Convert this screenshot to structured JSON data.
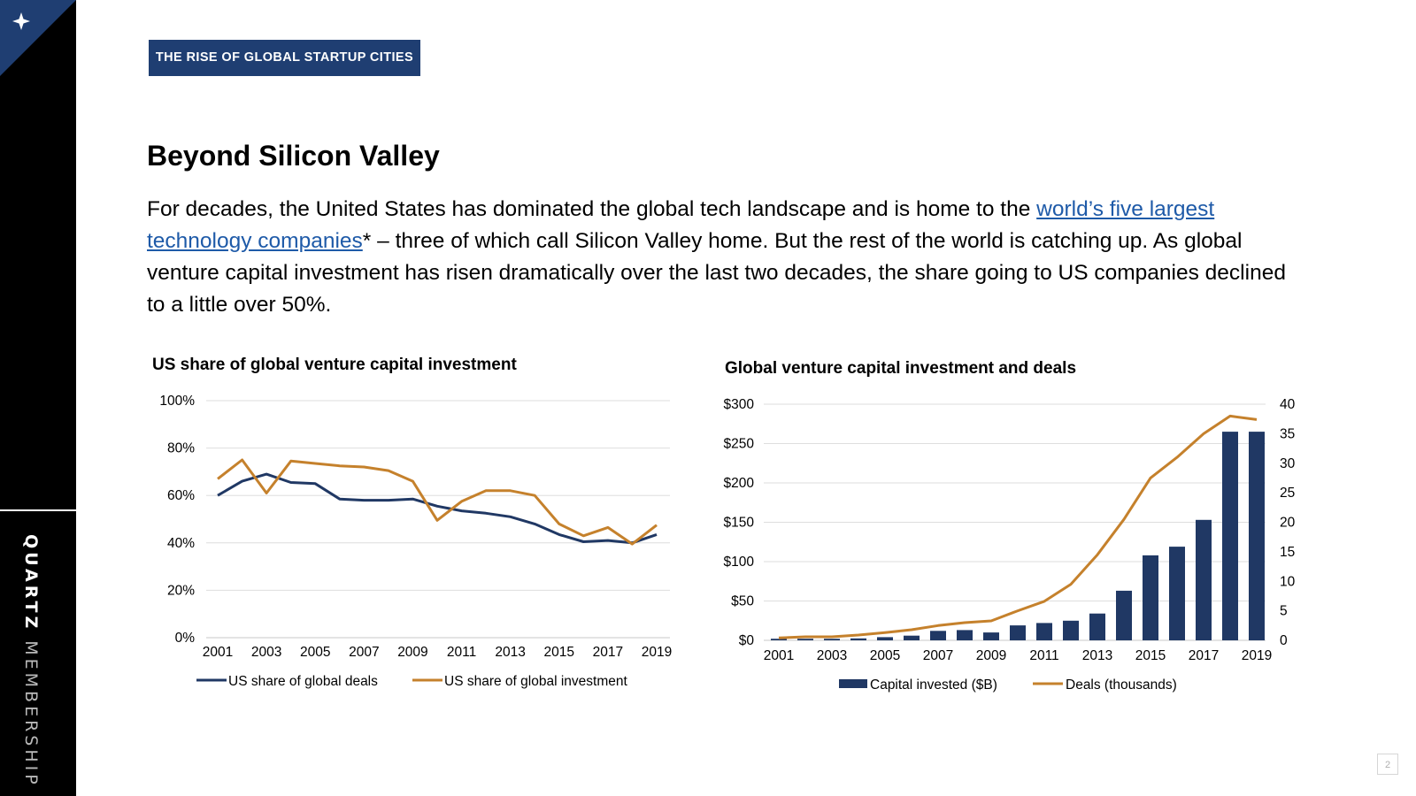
{
  "sidebar": {
    "brand_strong": "QUARTZ",
    "brand_light": "MEMBERSHIP",
    "icon": "sparkle-icon",
    "accent": "#1f3e72"
  },
  "header": {
    "tag": "THE RISE OF GLOBAL STARTUP CITIES",
    "title": "Beyond Silicon Valley"
  },
  "body": {
    "text_before": "For decades, the United States has dominated the global tech landscape and is home to the ",
    "link_text": "world’s five largest technology companies",
    "text_after": "* – three of which call Silicon Valley home. But the rest of the world is catching up. As global venture capital investment has risen dramatically over the last two decades, the share going to US companies declined to a little over 50%."
  },
  "page_number": "2",
  "chart_data": [
    {
      "type": "line",
      "title": "US share of global venture capital investment",
      "x": [
        2001,
        2002,
        2003,
        2004,
        2005,
        2006,
        2007,
        2008,
        2009,
        2010,
        2011,
        2012,
        2013,
        2014,
        2015,
        2016,
        2017,
        2018,
        2019
      ],
      "x_tick_labels": [
        "2001",
        "2003",
        "2005",
        "2007",
        "2009",
        "2011",
        "2013",
        "2015",
        "2017",
        "2019"
      ],
      "ylim": [
        0,
        100
      ],
      "y_ticks": [
        0,
        20,
        40,
        60,
        80,
        100
      ],
      "y_tick_labels": [
        "0%",
        "20%",
        "40%",
        "60%",
        "80%",
        "100%"
      ],
      "grid": true,
      "legend_position": "bottom",
      "series": [
        {
          "name": "US share of global deals",
          "color": "#203864",
          "values": [
            60,
            66,
            69,
            65.5,
            65,
            58.5,
            58,
            58,
            58.5,
            55.5,
            53.5,
            52.5,
            51,
            48,
            43.5,
            40.5,
            41,
            40,
            43.5
          ]
        },
        {
          "name": "US share of global investment",
          "color": "#c5812c",
          "values": [
            67,
            75,
            61,
            74.5,
            73.5,
            72.5,
            72,
            70.5,
            66,
            49.5,
            57.5,
            62,
            62,
            60,
            48,
            43,
            46.5,
            39.5,
            47.5
          ]
        }
      ]
    },
    {
      "type": "bar",
      "title": "Global venture capital investment and deals",
      "x": [
        2001,
        2002,
        2003,
        2004,
        2005,
        2006,
        2007,
        2008,
        2009,
        2010,
        2011,
        2012,
        2013,
        2014,
        2015,
        2016,
        2017,
        2018,
        2019
      ],
      "x_tick_labels": [
        "2001",
        "2003",
        "2005",
        "2007",
        "2009",
        "2011",
        "2013",
        "2015",
        "2017",
        "2019"
      ],
      "ylim": [
        0,
        300
      ],
      "y_ticks": [
        0,
        50,
        100,
        150,
        200,
        250,
        300
      ],
      "y_tick_labels": [
        "$0",
        "$50",
        "$100",
        "$150",
        "$200",
        "$250",
        "$300"
      ],
      "y2lim": [
        0,
        40
      ],
      "y2_ticks": [
        0,
        5,
        10,
        15,
        20,
        25,
        30,
        35,
        40
      ],
      "y2_tick_labels": [
        "0",
        "5",
        "10",
        "15",
        "20",
        "25",
        "30",
        "35",
        "40"
      ],
      "grid": true,
      "legend_position": "bottom",
      "series": [
        {
          "name": "Capital invested ($B)",
          "type": "bar",
          "axis": "left",
          "color": "#203864",
          "values": [
            2,
            2,
            2,
            2.5,
            4,
            6,
            12,
            13,
            10,
            19,
            22,
            25,
            34,
            63,
            108,
            119,
            153,
            265,
            265
          ]
        },
        {
          "name": "Deals (thousands)",
          "type": "line",
          "axis": "right",
          "color": "#c5812c",
          "values": [
            0.4,
            0.6,
            0.6,
            0.9,
            1.3,
            1.8,
            2.5,
            3.0,
            3.3,
            5.0,
            6.6,
            9.5,
            14.5,
            20.5,
            27.5,
            31.0,
            35.0,
            38.0,
            37.4
          ]
        }
      ]
    }
  ]
}
